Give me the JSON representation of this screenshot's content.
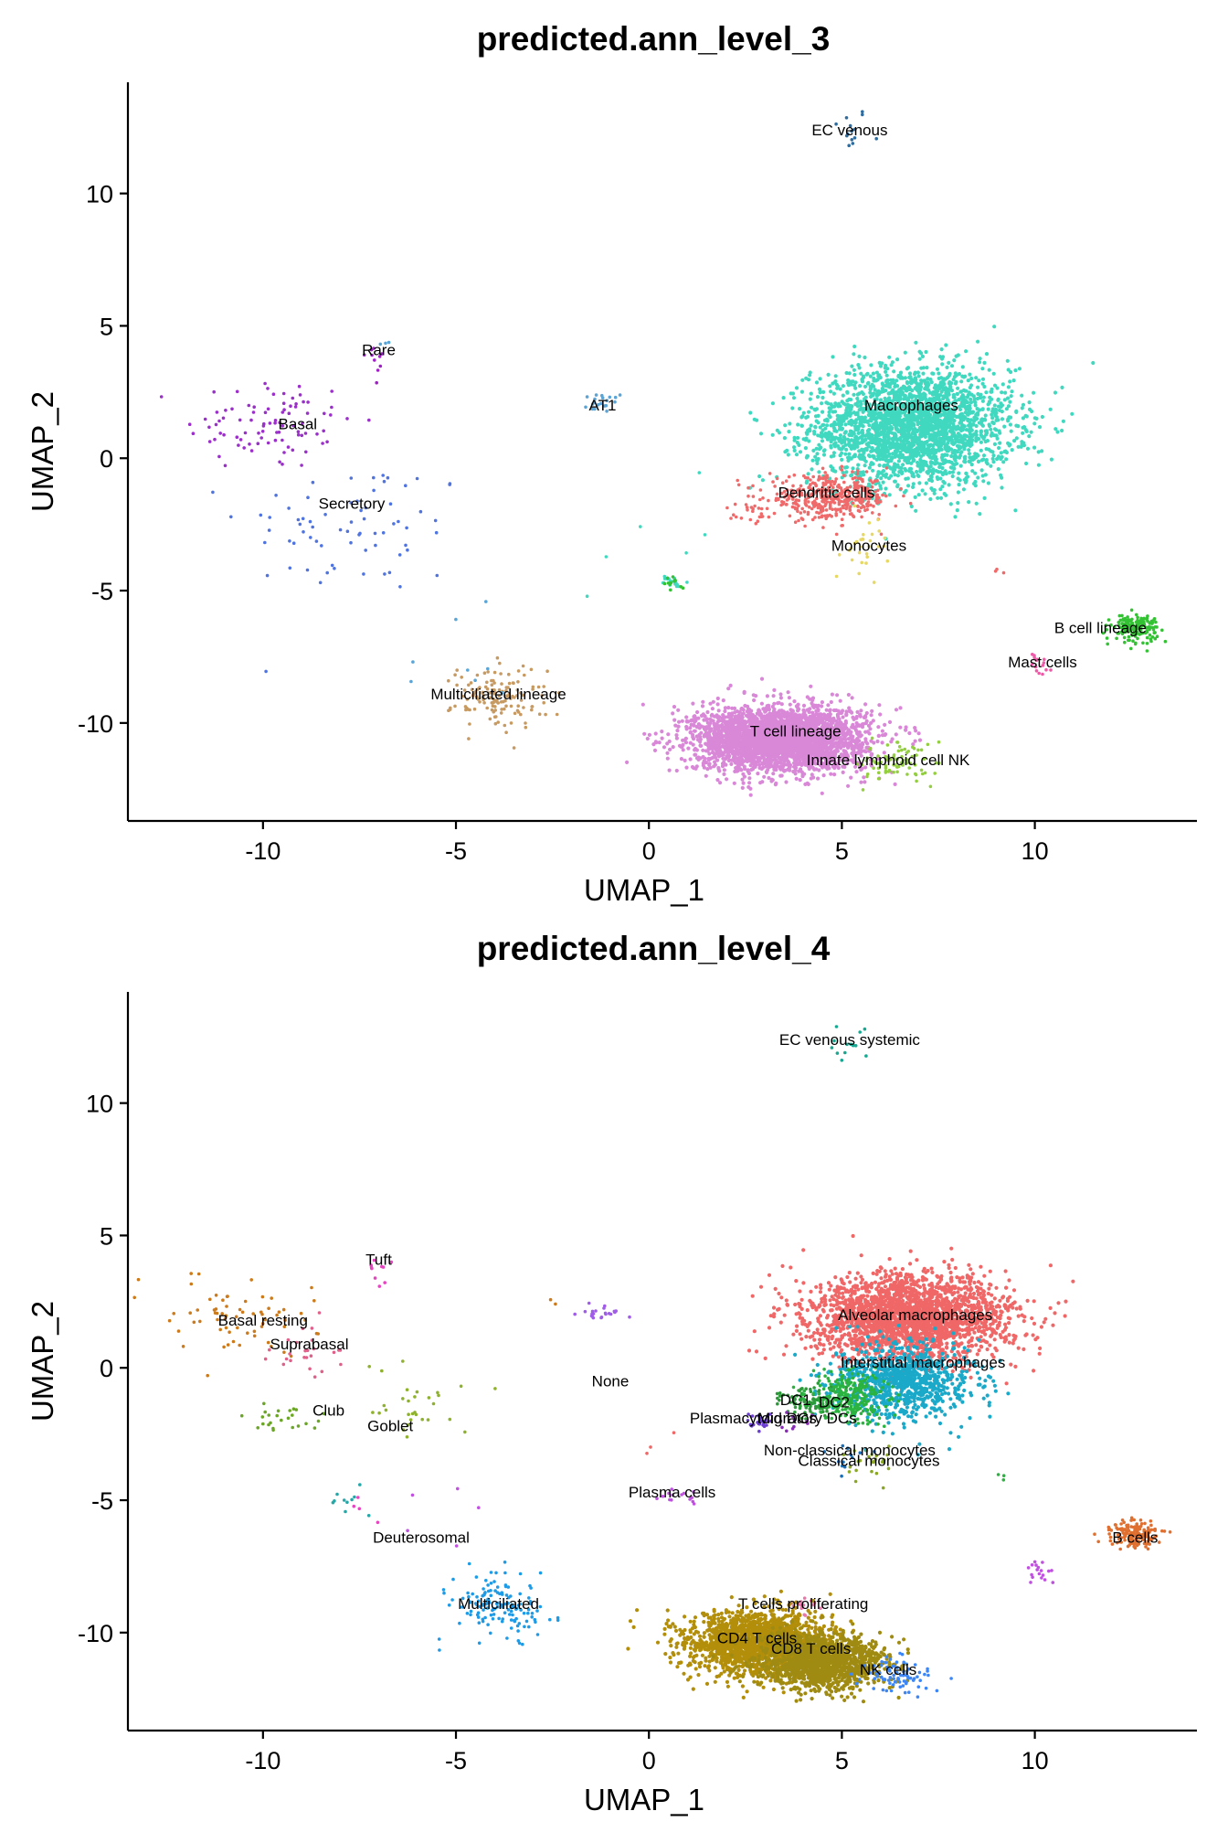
{
  "chart_data": [
    {
      "type": "scatter",
      "title": "predicted.ann_level_3",
      "xlabel": "UMAP_1",
      "ylabel": "UMAP_2",
      "xlim": [
        -13.5,
        14.2
      ],
      "ylim": [
        -13.7,
        14.2
      ],
      "xticks": [
        -10,
        -5,
        0,
        5,
        10
      ],
      "yticks": [
        10,
        5,
        0,
        -5,
        -10
      ],
      "grid": false,
      "clusters": [
        {
          "label": "EC venous",
          "color": "#2f6c9e",
          "cx": 5.2,
          "cy": 12.4,
          "sx": 0.25,
          "sy": 0.45,
          "n": 14,
          "lx": 5.2,
          "ly": 12.2
        },
        {
          "label": "Rare",
          "color": "#a020c8",
          "cx": -7.1,
          "cy": 3.7,
          "sx": 0.15,
          "sy": 0.5,
          "n": 10,
          "lx": -7.0,
          "ly": 3.9
        },
        {
          "label": "AT1",
          "color": "#5aa4d6",
          "cx": -1.2,
          "cy": 2.1,
          "sx": 0.3,
          "sy": 0.2,
          "n": 20,
          "lx": -1.2,
          "ly": 1.8
        },
        {
          "label": "Basal",
          "color": "#9b2fc9",
          "cx": -9.8,
          "cy": 1.3,
          "sx": 1.1,
          "sy": 0.9,
          "n": 90,
          "lx": -9.1,
          "ly": 1.1
        },
        {
          "label": "Secretory",
          "color": "#4f74e0",
          "cx": -7.6,
          "cy": -2.6,
          "sx": 1.5,
          "sy": 1.3,
          "n": 70,
          "lx": -7.7,
          "ly": -1.9
        },
        {
          "label": "Macrophages",
          "color": "#40d9c0",
          "cx": 6.8,
          "cy": 1.2,
          "sx": 1.3,
          "sy": 1.1,
          "n": 2600,
          "lx": 6.8,
          "ly": 1.8
        },
        {
          "label": "Dendritic cells",
          "color": "#ef6b6b",
          "cx": 4.7,
          "cy": -1.5,
          "sx": 0.8,
          "sy": 0.4,
          "n": 420,
          "lx": 4.6,
          "ly": -1.5
        },
        {
          "label": "Monocytes",
          "color": "#e6d862",
          "cx": 5.6,
          "cy": -3.3,
          "sx": 0.3,
          "sy": 0.5,
          "n": 30,
          "lx": 5.7,
          "ly": -3.5
        },
        {
          "label": "B cell lineage",
          "color": "#33c233",
          "cx": 12.6,
          "cy": -6.4,
          "sx": 0.3,
          "sy": 0.25,
          "n": 160,
          "lx": 11.7,
          "ly": -6.6
        },
        {
          "label": "Mast cells",
          "color": "#ee5aa7",
          "cx": 10.0,
          "cy": -7.7,
          "sx": 0.2,
          "sy": 0.25,
          "n": 15,
          "lx": 10.2,
          "ly": -7.9
        },
        {
          "label": "Multiciliated lineage",
          "color": "#c79a62",
          "cx": -3.9,
          "cy": -9.0,
          "sx": 0.6,
          "sy": 0.6,
          "n": 140,
          "lx": -3.9,
          "ly": -9.1
        },
        {
          "label": "T cell lineage",
          "color": "#d988d8",
          "cx": 3.4,
          "cy": -10.6,
          "sx": 1.1,
          "sy": 0.6,
          "n": 3200,
          "lx": 3.8,
          "ly": -10.5
        },
        {
          "label": "Innate lymphoid cell NK",
          "color": "#93cf3f",
          "cx": 6.5,
          "cy": -11.5,
          "sx": 0.5,
          "sy": 0.4,
          "n": 80,
          "lx": 6.2,
          "ly": -11.6
        }
      ],
      "sparse_points": [
        {
          "color": "#40d9c0",
          "x": 0.6,
          "y": -4.7,
          "n": 22,
          "s": 0.12
        },
        {
          "color": "#33c233",
          "x": 0.6,
          "y": -4.7,
          "n": 12,
          "s": 0.12
        },
        {
          "color": "#5aa4d6",
          "x": -6.9,
          "y": 4.4,
          "n": 3,
          "s": 0.1
        },
        {
          "color": "#ef6b6b",
          "x": 2.7,
          "y": -2.0,
          "n": 20,
          "s": 0.25
        },
        {
          "color": "#ef6b6b",
          "x": 9.1,
          "y": -4.2,
          "n": 3,
          "s": 0.1
        },
        {
          "color": "#5aa4d6",
          "x": -4.8,
          "y": -7.2,
          "n": 8,
          "s": 0.8
        },
        {
          "color": "#40d9c0",
          "x": 0.0,
          "y": -2.8,
          "n": 6,
          "s": 1.6
        }
      ]
    },
    {
      "type": "scatter",
      "title": "predicted.ann_level_4",
      "xlabel": "UMAP_1",
      "ylabel": "UMAP_2",
      "xlim": [
        -13.5,
        14.2
      ],
      "ylim": [
        -13.7,
        14.2
      ],
      "xticks": [
        -10,
        -5,
        0,
        5,
        10
      ],
      "yticks": [
        10,
        5,
        0,
        -5,
        -10
      ],
      "grid": false,
      "clusters": [
        {
          "label": "EC venous systemic",
          "color": "#16a891",
          "cx": 5.2,
          "cy": 12.4,
          "sx": 0.25,
          "sy": 0.45,
          "n": 14,
          "lx": 5.2,
          "ly": 12.2
        },
        {
          "label": "Tuft",
          "color": "#e645c0",
          "cx": -7.1,
          "cy": 3.7,
          "sx": 0.15,
          "sy": 0.5,
          "n": 10,
          "lx": -7.0,
          "ly": 3.9
        },
        {
          "label": "None",
          "color": "#a05ce8",
          "cx": -1.2,
          "cy": 2.1,
          "sx": 0.3,
          "sy": 0.2,
          "n": 22,
          "lx": -1.0,
          "ly": -0.7
        },
        {
          "label": "Basal resting",
          "color": "#cc7a1a",
          "cx": -10.5,
          "cy": 2.0,
          "sx": 1.0,
          "sy": 0.7,
          "n": 70,
          "lx": -10.0,
          "ly": 1.6
        },
        {
          "label": "Suprabasal",
          "color": "#e0608a",
          "cx": -9.0,
          "cy": 0.5,
          "sx": 0.5,
          "sy": 0.5,
          "n": 25,
          "lx": -8.8,
          "ly": 0.7
        },
        {
          "label": "Club",
          "color": "#6ca626",
          "cx": -9.4,
          "cy": -1.9,
          "sx": 0.5,
          "sy": 0.3,
          "n": 25,
          "lx": -8.3,
          "ly": -1.8
        },
        {
          "label": "Goblet",
          "color": "#8fb22e",
          "cx": -6.0,
          "cy": -1.3,
          "sx": 0.8,
          "sy": 0.6,
          "n": 30,
          "lx": -6.7,
          "ly": -2.4
        },
        {
          "label": "Deuterosomal",
          "color": "#26a8a8",
          "cx": -7.9,
          "cy": -5.2,
          "sx": 0.3,
          "sy": 0.3,
          "n": 10,
          "lx": -5.9,
          "ly": -6.6
        },
        {
          "label": "Alveolar macrophages",
          "color": "#f06767",
          "cx": 6.8,
          "cy": 1.9,
          "sx": 1.3,
          "sy": 0.8,
          "n": 2400,
          "lx": 6.9,
          "ly": 1.8
        },
        {
          "label": "Interstitial macrophages",
          "color": "#1ba9c9",
          "cx": 6.6,
          "cy": -0.5,
          "sx": 0.9,
          "sy": 0.7,
          "n": 900,
          "lx": 7.1,
          "ly": 0.0
        },
        {
          "label": "DC1",
          "color": "#2d9a3a",
          "cx": 4.2,
          "cy": -1.3,
          "sx": 0.4,
          "sy": 0.3,
          "n": 110,
          "lx": 3.8,
          "ly": -1.4
        },
        {
          "label": "DC2",
          "color": "#2bb340",
          "cx": 5.2,
          "cy": -1.1,
          "sx": 0.5,
          "sy": 0.5,
          "n": 260,
          "lx": 4.8,
          "ly": -1.5
        },
        {
          "label": "Migratory DCs",
          "color": "#6b3fd0",
          "cx": 3.0,
          "cy": -2.0,
          "sx": 0.3,
          "sy": 0.15,
          "n": 25,
          "lx": 4.1,
          "ly": -2.1
        },
        {
          "label": "Plasmacytoid DCs",
          "color": "#8a2bb8",
          "cx": 3.8,
          "cy": -2.1,
          "sx": 0.3,
          "sy": 0.15,
          "n": 10,
          "lx": 2.7,
          "ly": -2.1
        },
        {
          "label": "Non-classical monocytes",
          "color": "#1a6fb8",
          "cx": 5.0,
          "cy": -3.5,
          "sx": 0.3,
          "sy": 0.3,
          "n": 12,
          "lx": 5.2,
          "ly": -3.3
        },
        {
          "label": "Classical monocytes",
          "color": "#8aa824",
          "cx": 5.6,
          "cy": -3.6,
          "sx": 0.4,
          "sy": 0.3,
          "n": 25,
          "lx": 5.7,
          "ly": -3.7
        },
        {
          "label": "Plasma cells",
          "color": "#c051e0",
          "cx": 0.8,
          "cy": -4.8,
          "sx": 0.3,
          "sy": 0.15,
          "n": 14,
          "lx": 0.6,
          "ly": -4.9
        },
        {
          "label": "B cells",
          "color": "#e07030",
          "cx": 12.6,
          "cy": -6.3,
          "sx": 0.3,
          "sy": 0.25,
          "n": 160,
          "lx": 12.6,
          "ly": -6.6
        },
        {
          "label": "Multiciliated",
          "color": "#1e9be6",
          "cx": -3.9,
          "cy": -9.0,
          "sx": 0.6,
          "sy": 0.6,
          "n": 140,
          "lx": -3.9,
          "ly": -9.1
        },
        {
          "label": "T cells proliferating",
          "color": "#e878a8",
          "cx": 4.0,
          "cy": -9.0,
          "sx": 0.25,
          "sy": 0.2,
          "n": 15,
          "lx": 4.0,
          "ly": -9.1
        },
        {
          "label": "CD4 T cells",
          "color": "#b28e0a",
          "cx": 2.8,
          "cy": -10.4,
          "sx": 0.9,
          "sy": 0.6,
          "n": 1800,
          "lx": 2.8,
          "ly": -10.4
        },
        {
          "label": "CD8 T cells",
          "color": "#a08b12",
          "cx": 4.5,
          "cy": -11.1,
          "sx": 0.8,
          "sy": 0.5,
          "n": 1400,
          "lx": 4.2,
          "ly": -10.8
        },
        {
          "label": "NK cells",
          "color": "#3d86f5",
          "cx": 6.4,
          "cy": -11.6,
          "sx": 0.5,
          "sy": 0.4,
          "n": 80,
          "lx": 6.2,
          "ly": -11.6
        }
      ],
      "sparse_points": [
        {
          "color": "#c051e0",
          "x": 10.2,
          "y": -7.7,
          "n": 18,
          "s": 0.2
        },
        {
          "color": "#cc7a1a",
          "x": -2.6,
          "y": 2.5,
          "n": 2,
          "s": 0.1
        },
        {
          "color": "#f06767",
          "x": 0.0,
          "y": -3.0,
          "n": 3,
          "s": 0.8
        },
        {
          "color": "#2bb340",
          "x": 9.1,
          "y": -4.2,
          "n": 3,
          "s": 0.1
        },
        {
          "color": "#c051e0",
          "x": -5.5,
          "y": -5.5,
          "n": 5,
          "s": 1.0
        },
        {
          "color": "#e645c0",
          "x": -7.2,
          "y": -5.2,
          "n": 4,
          "s": 0.4
        }
      ]
    }
  ]
}
